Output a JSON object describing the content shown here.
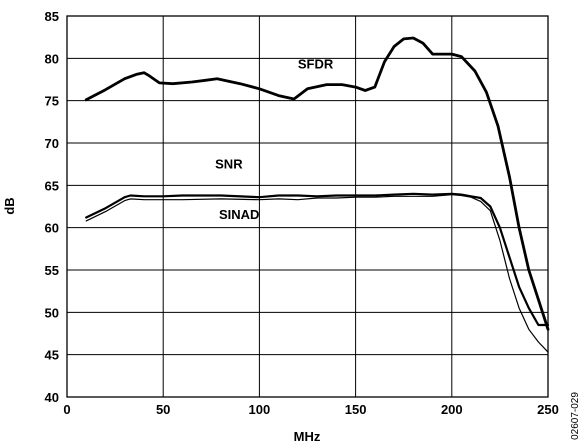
{
  "chart_data": {
    "type": "line",
    "xlabel": "MHz",
    "ylabel": "dB",
    "xlim": [
      0,
      250
    ],
    "ylim": [
      40,
      85
    ],
    "x_ticks": [
      "0",
      "50",
      "100",
      "150",
      "200",
      "250"
    ],
    "y_ticks": [
      "40",
      "45",
      "50",
      "55",
      "60",
      "65",
      "70",
      "75",
      "80",
      "85"
    ],
    "grid": true,
    "figure_id": "02607-029",
    "series": [
      {
        "name": "SFDR",
        "x": [
          10,
          20,
          30,
          36,
          40,
          43,
          48,
          55,
          65,
          72,
          78,
          84,
          90,
          100,
          110,
          118,
          125,
          135,
          143,
          150,
          155,
          160,
          165,
          170,
          175,
          180,
          185,
          190,
          200,
          205,
          212,
          218,
          224,
          230,
          235,
          240,
          245,
          250
        ],
        "values": [
          75.1,
          76.3,
          77.6,
          78.1,
          78.3,
          77.9,
          77.1,
          77.0,
          77.2,
          77.4,
          77.6,
          77.3,
          77.0,
          76.4,
          75.6,
          75.2,
          76.4,
          76.9,
          76.9,
          76.6,
          76.2,
          76.6,
          79.6,
          81.4,
          82.3,
          82.4,
          81.8,
          80.5,
          80.5,
          80.2,
          78.5,
          76.0,
          72.0,
          66.0,
          60.0,
          55.0,
          51.5,
          48.0
        ]
      },
      {
        "name": "SNR",
        "x": [
          10,
          20,
          30,
          33,
          40,
          50,
          60,
          80,
          100,
          110,
          120,
          130,
          140,
          150,
          160,
          170,
          180,
          190,
          200,
          205,
          210,
          215,
          220,
          225,
          230,
          235,
          240,
          245,
          250
        ],
        "values": [
          61.2,
          62.3,
          63.6,
          63.8,
          63.7,
          63.7,
          63.8,
          63.8,
          63.6,
          63.8,
          63.8,
          63.7,
          63.8,
          63.8,
          63.8,
          63.9,
          64.0,
          63.9,
          64.0,
          63.9,
          63.7,
          63.5,
          62.5,
          60.0,
          56.5,
          53.0,
          50.5,
          48.5,
          48.5
        ]
      },
      {
        "name": "SINAD",
        "x": [
          10,
          20,
          30,
          33,
          40,
          50,
          60,
          80,
          100,
          110,
          120,
          130,
          140,
          150,
          160,
          170,
          180,
          190,
          200,
          205,
          210,
          215,
          220,
          225,
          230,
          235,
          240,
          245,
          250
        ],
        "values": [
          60.8,
          61.9,
          63.2,
          63.4,
          63.3,
          63.3,
          63.3,
          63.4,
          63.3,
          63.4,
          63.3,
          63.5,
          63.5,
          63.6,
          63.6,
          63.7,
          63.7,
          63.7,
          63.9,
          63.8,
          63.6,
          63.1,
          62.0,
          58.5,
          54.0,
          50.5,
          48.0,
          46.5,
          45.3
        ]
      }
    ],
    "labels": [
      {
        "text": "SFDR",
        "x": 120,
        "y": 78.8
      },
      {
        "text": "SNR",
        "x": 77,
        "y": 67.0
      },
      {
        "text": "SINAD",
        "x": 79,
        "y": 61.0
      }
    ]
  }
}
